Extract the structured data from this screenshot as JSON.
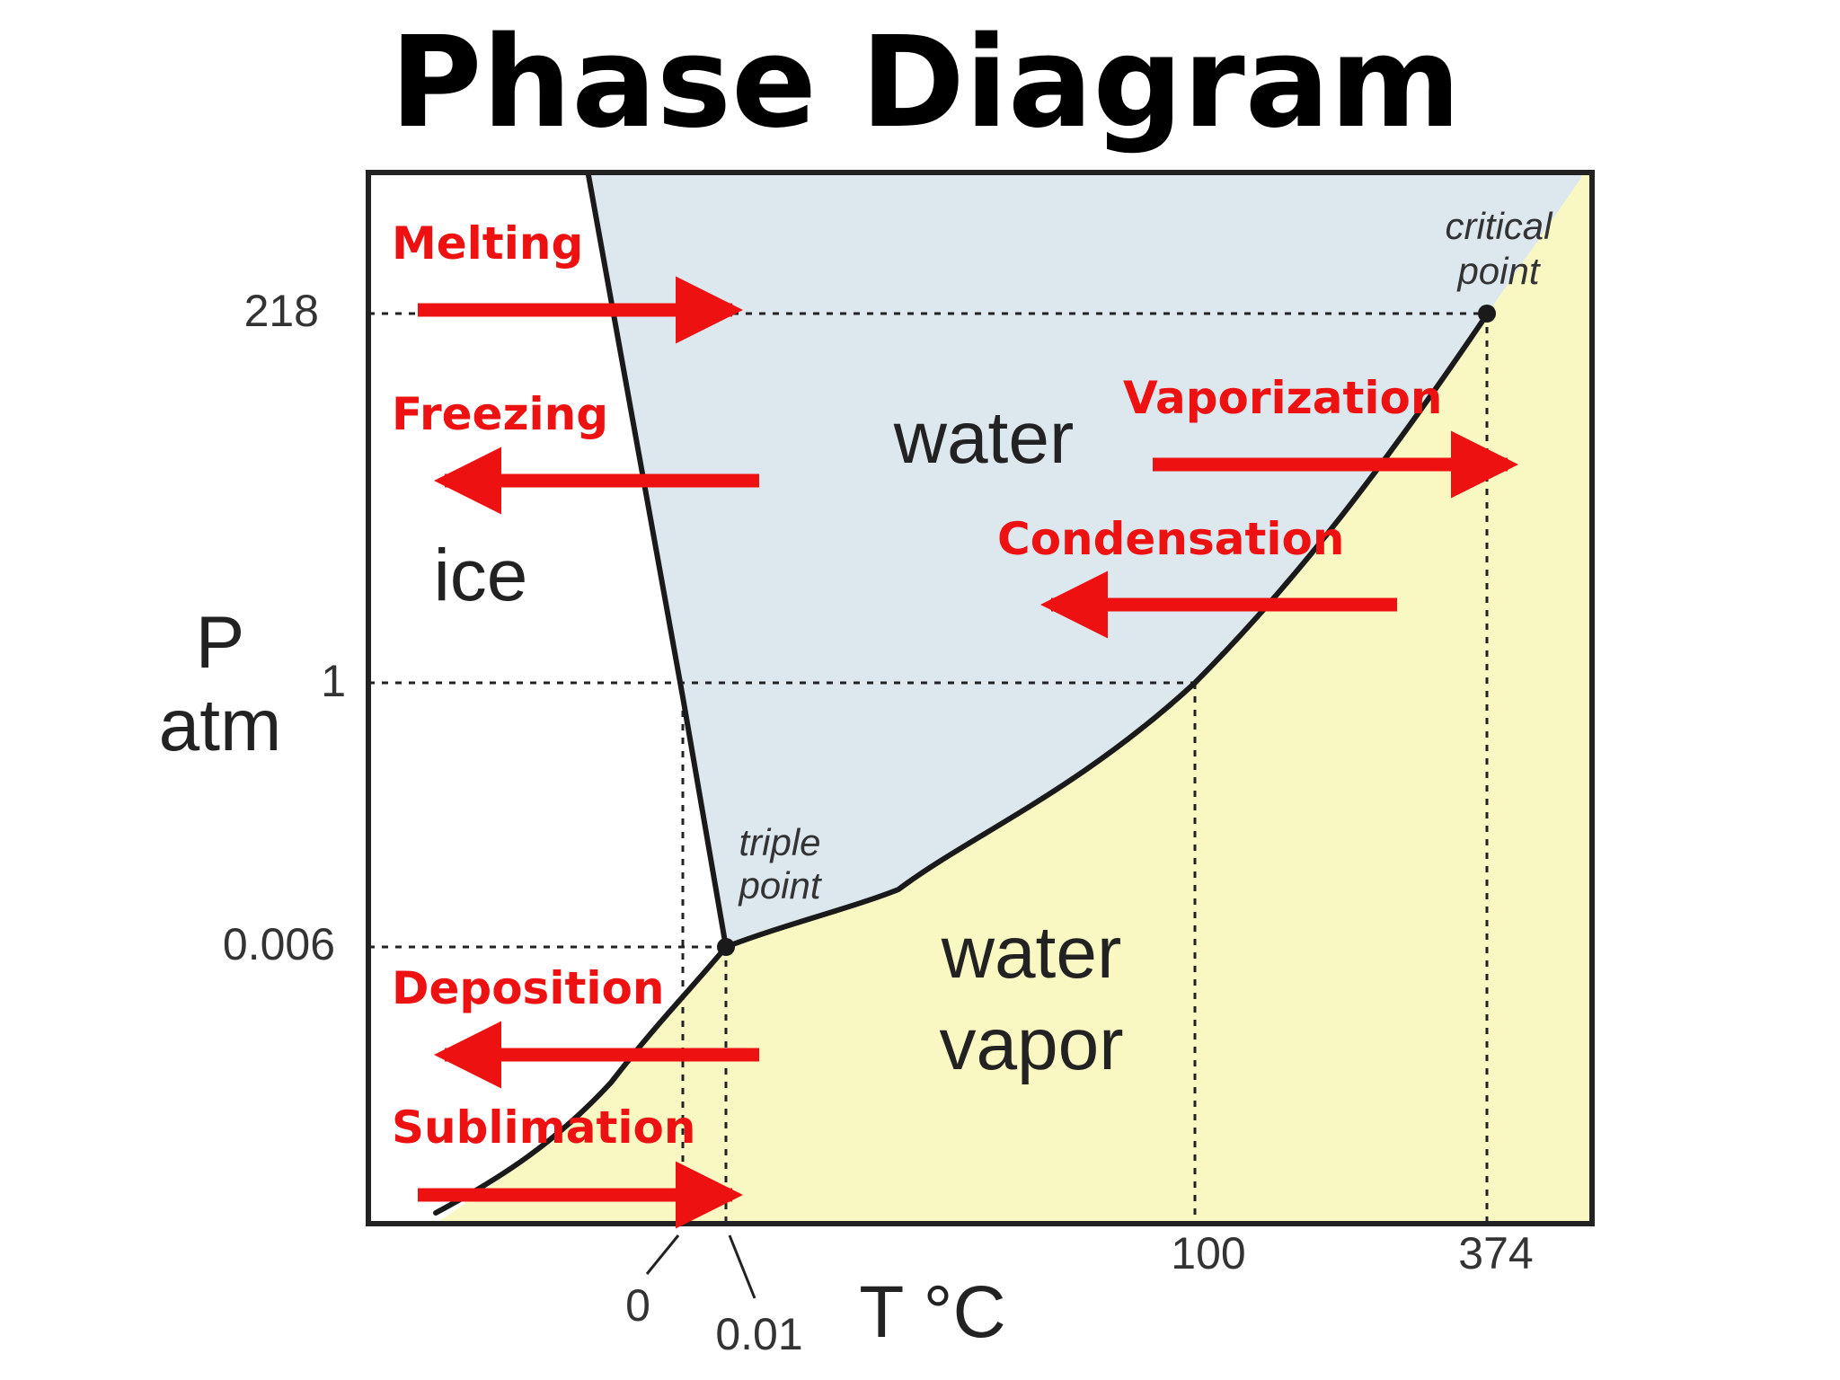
{
  "title": "Phase Diagram",
  "colors": {
    "water_region": "#dde8ee",
    "vapor_region": "#f9f7c2",
    "ice_region": "#ffffff",
    "boundary": "#1a1a1a",
    "process": "#ee1111"
  },
  "axes": {
    "y_symbol": "P",
    "y_unit": "atm",
    "x_label": "T °C",
    "y_ticks": [
      "218",
      "1",
      "0.006"
    ],
    "x_ticks": [
      "0",
      "0.01",
      "100",
      "374"
    ]
  },
  "regions": {
    "ice": "ice",
    "water": "water",
    "vapor_line1": "water",
    "vapor_line2": "vapor"
  },
  "points": {
    "triple_line1": "triple",
    "triple_line2": "point",
    "critical_line1": "critical",
    "critical_line2": "point"
  },
  "processes": {
    "melting": "Melting",
    "freezing": "Freezing",
    "vaporization": "Vaporization",
    "condensation": "Condensation",
    "deposition": "Deposition",
    "sublimation": "Sublimation"
  }
}
